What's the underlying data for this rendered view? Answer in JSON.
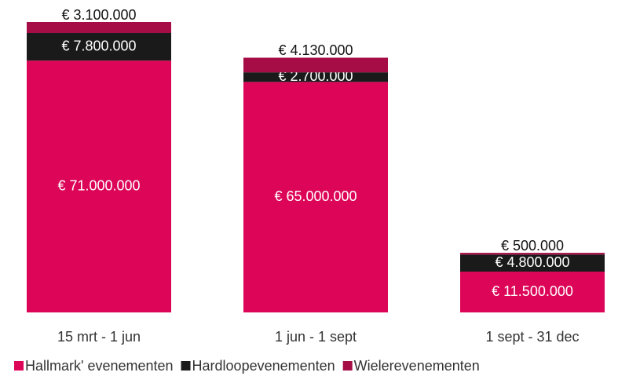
{
  "chart_data": {
    "type": "stacked_bar",
    "categories": [
      "15 mrt - 1 jun",
      "1 jun - 1 sept",
      "1 sept - 31 dec"
    ],
    "series": [
      {
        "name": "Hallmark' evenementen",
        "color": "#dc0558",
        "values": [
          71000000,
          65000000,
          11500000
        ],
        "value_labels": [
          "€ 71.000.000",
          "€ 65.000.000",
          "€ 11.500.000"
        ]
      },
      {
        "name": "Hardloopevenementen",
        "color": "#1a1a1a",
        "values": [
          7800000,
          2700000,
          4800000
        ],
        "value_labels": [
          "€ 7.800.000",
          "€ 2.700.000",
          "€ 4.800.000"
        ]
      },
      {
        "name": "Wielerevenementen",
        "color": "#a60d47",
        "values": [
          3100000,
          4130000,
          500000
        ],
        "value_labels": [
          "€ 3.100.000",
          "€ 4.130.000",
          "€ 500.000"
        ]
      }
    ]
  }
}
